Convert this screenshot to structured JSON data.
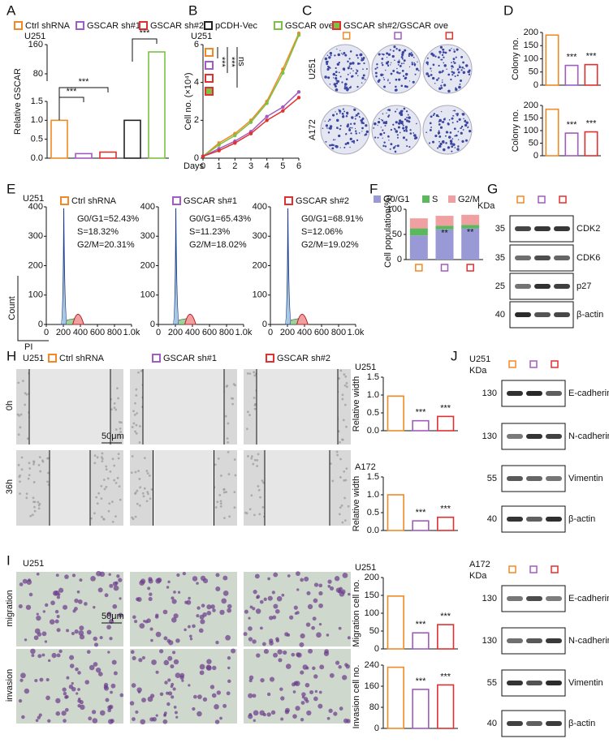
{
  "legend": [
    {
      "label": "Ctrl shRNA",
      "color": "#f08a24"
    },
    {
      "label": "GSCAR sh#1",
      "color": "#a05cc0"
    },
    {
      "label": "GSCAR sh#2",
      "color": "#e03030"
    },
    {
      "label": "pCDH-Vec",
      "color": "#222222"
    },
    {
      "label": "GSCAR ove",
      "color": "#7cc144"
    },
    {
      "label": "GSCAR sh#2/GSCAR ove",
      "color": "#e03030"
    }
  ],
  "panels": {
    "A": {
      "letter": "A",
      "cell": "U251",
      "ylabel": "Relative GSCAR",
      "colors": [
        "#f08a24",
        "#a05cc0",
        "#e03030",
        "#222222",
        "#7cc144"
      ],
      "values": [
        1.0,
        0.12,
        0.16,
        1.0,
        140
      ],
      "ylim_lower": [
        0,
        1.5
      ],
      "yticks_lower": [
        {
          "value": 0,
          "label": "0.0"
        },
        0.5,
        {
          "value": 1,
          "label": "1.0"
        },
        1.5
      ],
      "ylim_upper": [
        60,
        160
      ],
      "yticks_upper": [
        80,
        160
      ],
      "sig": [
        "***",
        "***",
        "***"
      ]
    },
    "B": {
      "letter": "B",
      "cell": "U251",
      "ylabel": "Cell no. (×10⁴)",
      "xlabel": "Days",
      "x": [
        0,
        1,
        2,
        3,
        4,
        5,
        6
      ],
      "xlim": [
        0,
        6
      ],
      "ylim": [
        0,
        6
      ],
      "xticks": [
        0,
        1,
        2,
        3,
        4,
        5,
        6
      ],
      "yticks": [
        0,
        2,
        4,
        6
      ],
      "series": [
        {
          "color": "#f08a24",
          "values": [
            0.1,
            0.8,
            1.3,
            2.0,
            3.0,
            4.7,
            6.6
          ]
        },
        {
          "color": "#7cc144",
          "values": [
            0.1,
            0.7,
            1.2,
            1.9,
            2.9,
            4.5,
            6.5
          ]
        },
        {
          "color": "#a05cc0",
          "values": [
            0.1,
            0.5,
            0.9,
            1.4,
            2.2,
            2.7,
            3.5
          ]
        },
        {
          "color": "#e03030",
          "values": [
            0.1,
            0.4,
            0.8,
            1.3,
            2.0,
            2.5,
            3.2
          ]
        }
      ],
      "sig": [
        "***",
        "***",
        "ns"
      ]
    },
    "C": {
      "letter": "C",
      "rows": [
        "U251",
        "A172"
      ]
    },
    "D": {
      "letter": "D",
      "charts": [
        {
          "ylabel": "Colony no.",
          "values": [
            190,
            75,
            78
          ],
          "ylim": [
            0,
            200
          ],
          "yticks": [
            0,
            50,
            100,
            150,
            200
          ],
          "sig": [
            "***",
            "***"
          ]
        },
        {
          "ylabel": "Colony no.",
          "values": [
            185,
            90,
            95
          ],
          "ylim": [
            0,
            200
          ],
          "yticks": [
            0,
            50,
            100,
            150,
            200
          ],
          "sig": [
            "***",
            "***"
          ]
        }
      ]
    },
    "E": {
      "letter": "E",
      "cell": "U251",
      "ylabel": "Count",
      "xlabel": "PI",
      "xticks": [
        0,
        200,
        400,
        600,
        800,
        {
          "value": 1000,
          "label": "1.0k"
        }
      ],
      "yticks": [
        0,
        100,
        200,
        300,
        400
      ],
      "groups": [
        {
          "name": "Ctrl shRNA",
          "stats": [
            "G0/G1=52.43%",
            "S=18.32%",
            "G2/M=20.31%"
          ]
        },
        {
          "name": "GSCAR sh#1",
          "stats": [
            "G0/G1=65.43%",
            "S=11.23%",
            "G2/M=18.02%"
          ]
        },
        {
          "name": "GSCAR sh#2",
          "stats": [
            "G0/G1=68.91%",
            "S=12.06%",
            "G2/M=19.02%"
          ]
        }
      ]
    },
    "F": {
      "letter": "F",
      "ylabel": "Cell population(%)",
      "ylim": [
        0,
        100
      ],
      "yticks": [
        0,
        50,
        100
      ],
      "series": [
        {
          "name": "G0/G1",
          "color": "#9999d6",
          "values": [
            48,
            60,
            62
          ]
        },
        {
          "name": "S",
          "color": "#5cb85c",
          "values": [
            14,
            7,
            7
          ]
        },
        {
          "name": "G2/M",
          "color": "#f0a0a0",
          "values": [
            20,
            20,
            20
          ]
        }
      ],
      "sig": [
        "**",
        "**"
      ]
    },
    "G": {
      "letter": "G",
      "unit": "KDa",
      "rows": [
        {
          "kda": "35",
          "protein": "CDK2"
        },
        {
          "kda": "35",
          "protein": "CDK6"
        },
        {
          "kda": "25",
          "protein": "p27"
        },
        {
          "kda": "40",
          "protein": "β-actin"
        }
      ]
    },
    "H": {
      "letter": "H",
      "cell": "U251",
      "columns": [
        "Ctrl shRNA",
        "GSCAR sh#1",
        "GSCAR sh#2"
      ],
      "rows": [
        "0h",
        "36h"
      ],
      "scale": "50μm",
      "charts": [
        {
          "cell": "U251",
          "ylabel": "Relative width",
          "values": [
            0.97,
            0.28,
            0.4
          ],
          "ylim": [
            0,
            1.5
          ],
          "yticks": [
            {
              "value": 0,
              "label": "0.0"
            },
            0.5,
            {
              "value": 1,
              "label": "1.0"
            },
            1.5
          ],
          "sig": [
            "***",
            "***"
          ]
        },
        {
          "cell": "A172",
          "ylabel": "Relative width",
          "values": [
            1.0,
            0.27,
            0.37
          ],
          "ylim": [
            0,
            1.5
          ],
          "yticks": [
            {
              "value": 0,
              "label": "0.0"
            },
            0.5,
            {
              "value": 1,
              "label": "1.0"
            },
            1.5
          ],
          "sig": [
            "***",
            "***"
          ]
        }
      ]
    },
    "J": {
      "letter": "J",
      "cell": "U251",
      "unit": "KDa",
      "rows": [
        {
          "kda": "130",
          "protein": "E-cadherin"
        },
        {
          "kda": "130",
          "protein": "N-cadherin"
        },
        {
          "kda": "55",
          "protein": "Vimentin"
        },
        {
          "kda": "40",
          "protein": "β-actin"
        }
      ]
    },
    "I": {
      "letter": "I",
      "cell": "U251",
      "rows": [
        "migration",
        "invasion"
      ],
      "scale": "50μm",
      "charts": [
        {
          "cell": "U251",
          "ylabel": "Migration cell no.",
          "values": [
            148,
            45,
            68
          ],
          "ylim": [
            0,
            200
          ],
          "yticks": [
            0,
            50,
            100,
            150,
            200
          ],
          "sig": [
            "***",
            "***"
          ]
        },
        {
          "ylabel": "Invasion cell no.",
          "values": [
            232,
            148,
            165
          ],
          "ylim": [
            0,
            240
          ],
          "yticks": [
            0,
            80,
            160,
            240
          ],
          "sig": [
            "***",
            "***"
          ]
        }
      ]
    },
    "K": {
      "cell": "A172",
      "unit": "KDa",
      "rows": [
        {
          "kda": "130",
          "protein": "E-cadherin"
        },
        {
          "kda": "130",
          "protein": "N-cadherin"
        },
        {
          "kda": "55",
          "protein": "Vimentin"
        },
        {
          "kda": "40",
          "protein": "β-actin"
        }
      ]
    }
  }
}
